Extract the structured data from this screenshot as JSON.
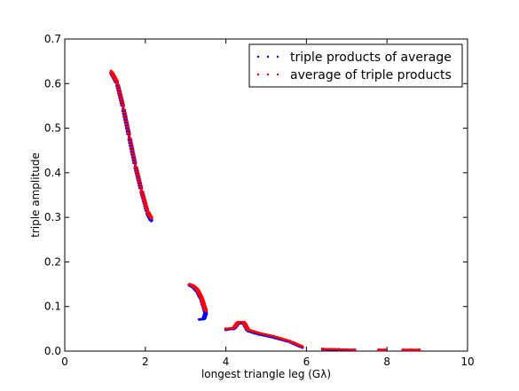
{
  "chart_data": {
    "type": "scatter",
    "title": "",
    "xlabel": "longest triangle leg (Gλ)",
    "ylabel": "triple amplitude",
    "xlim": [
      0,
      10
    ],
    "ylim": [
      0,
      0.7
    ],
    "xticks": [
      "0",
      "2",
      "4",
      "6",
      "8",
      "10"
    ],
    "yticks": [
      "0.0",
      "0.1",
      "0.2",
      "0.3",
      "0.4",
      "0.5",
      "0.6",
      "0.7"
    ],
    "grid": false,
    "legend_position": "upper right",
    "series": [
      {
        "name": "triple products of average",
        "color": "#0000ff",
        "marker": "dot",
        "segments": [
          [
            [
              1.15,
              0.625
            ],
            [
              1.3,
              0.6
            ],
            [
              1.45,
              0.545
            ],
            [
              1.6,
              0.48
            ],
            [
              1.75,
              0.415
            ],
            [
              1.9,
              0.36
            ],
            [
              2.05,
              0.31
            ],
            [
              2.15,
              0.292
            ]
          ],
          [
            [
              3.1,
              0.148
            ],
            [
              3.2,
              0.143
            ],
            [
              3.3,
              0.133
            ],
            [
              3.4,
              0.115
            ],
            [
              3.45,
              0.1
            ],
            [
              3.5,
              0.085
            ],
            [
              3.45,
              0.072
            ],
            [
              3.35,
              0.071
            ]
          ],
          [
            [
              4.0,
              0.048
            ],
            [
              4.2,
              0.05
            ],
            [
              4.3,
              0.062
            ],
            [
              4.45,
              0.062
            ],
            [
              4.55,
              0.045
            ],
            [
              4.8,
              0.038
            ],
            [
              5.2,
              0.03
            ],
            [
              5.6,
              0.02
            ],
            [
              5.9,
              0.008
            ]
          ],
          [
            [
              6.4,
              0.004
            ],
            [
              6.8,
              0.003
            ],
            [
              7.2,
              0.002
            ]
          ],
          [
            [
              7.8,
              0.002
            ],
            [
              7.95,
              0.002
            ]
          ],
          [
            [
              8.4,
              0.002
            ],
            [
              8.6,
              0.002
            ],
            [
              8.8,
              0.002
            ]
          ]
        ]
      },
      {
        "name": "average of triple products",
        "color": "#ff0000",
        "marker": "dot",
        "segments": [
          [
            [
              1.15,
              0.628
            ],
            [
              1.3,
              0.603
            ],
            [
              1.45,
              0.548
            ],
            [
              1.6,
              0.483
            ],
            [
              1.75,
              0.418
            ],
            [
              1.9,
              0.363
            ],
            [
              2.05,
              0.314
            ],
            [
              2.15,
              0.298
            ]
          ],
          [
            [
              3.1,
              0.15
            ],
            [
              3.2,
              0.146
            ],
            [
              3.3,
              0.137
            ],
            [
              3.4,
              0.119
            ],
            [
              3.45,
              0.104
            ],
            [
              3.5,
              0.09
            ]
          ],
          [
            [
              4.0,
              0.05
            ],
            [
              4.2,
              0.052
            ],
            [
              4.3,
              0.065
            ],
            [
              4.45,
              0.065
            ],
            [
              4.55,
              0.048
            ],
            [
              4.8,
              0.041
            ],
            [
              5.2,
              0.033
            ],
            [
              5.6,
              0.022
            ],
            [
              5.9,
              0.01
            ]
          ],
          [
            [
              6.4,
              0.005
            ],
            [
              6.8,
              0.004
            ],
            [
              7.2,
              0.003
            ]
          ],
          [
            [
              7.8,
              0.003
            ],
            [
              7.95,
              0.003
            ]
          ],
          [
            [
              8.4,
              0.003
            ],
            [
              8.6,
              0.003
            ],
            [
              8.8,
              0.003
            ]
          ]
        ]
      }
    ]
  }
}
